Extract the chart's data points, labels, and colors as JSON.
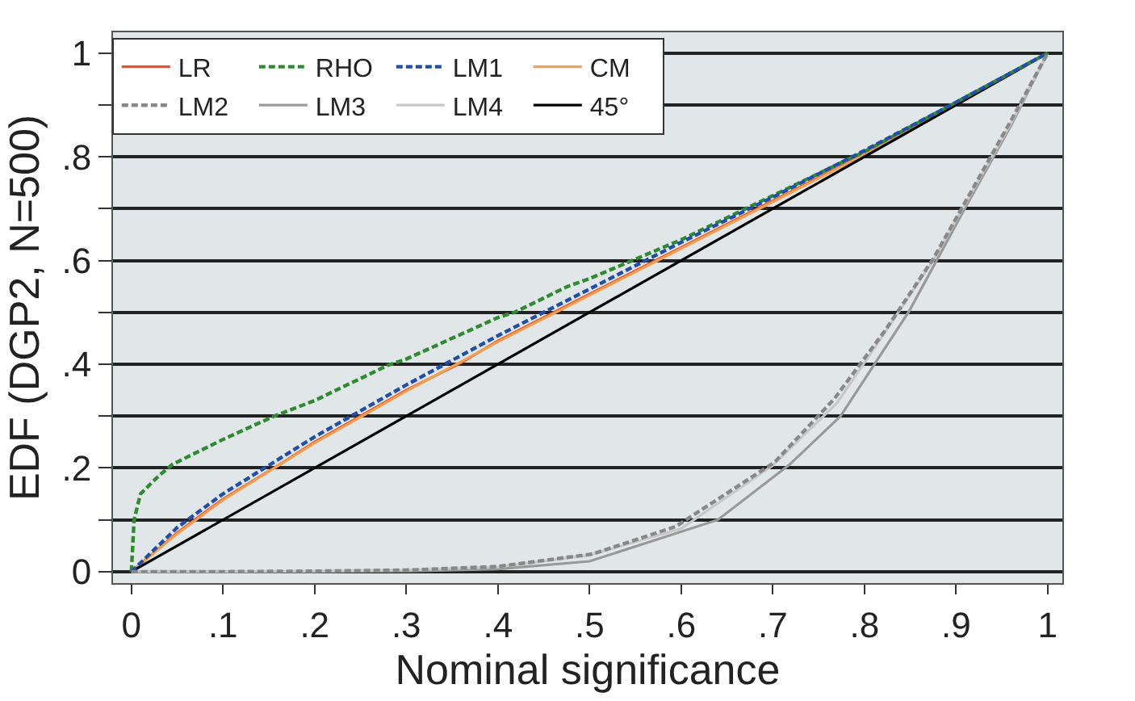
{
  "chart_data": {
    "type": "line",
    "xlabel": "Nominal significance",
    "ylabel": "EDF (DGP2, N=500)",
    "xlim": [
      -0.02,
      1.016
    ],
    "ylim": [
      -0.022,
      1.04
    ],
    "xticks": [
      0,
      {
        "value": 0.1,
        "label": ".1"
      },
      {
        "value": 0.2,
        "label": ".2"
      },
      {
        "value": 0.3,
        "label": ".3"
      },
      {
        "value": 0.4,
        "label": ".4"
      },
      {
        "value": 0.5,
        "label": ".5"
      },
      {
        "value": 0.6,
        "label": ".6"
      },
      {
        "value": 0.7,
        "label": ".7"
      },
      {
        "value": 0.8,
        "label": ".8"
      },
      {
        "value": 0.9,
        "label": ".9"
      },
      1
    ],
    "yticks": [
      0,
      {
        "value": 0.1,
        "label": null
      },
      {
        "value": 0.2,
        "label": ".2"
      },
      {
        "value": 0.3,
        "label": null
      },
      {
        "value": 0.4,
        "label": ".4"
      },
      {
        "value": 0.5,
        "label": null
      },
      {
        "value": 0.6,
        "label": ".6"
      },
      {
        "value": 0.7,
        "label": null
      },
      {
        "value": 0.8,
        "label": ".8"
      },
      {
        "value": 0.9,
        "label": null
      },
      1
    ],
    "grid": "y",
    "legend": "top left",
    "marker": "none",
    "series": [
      {
        "name": "LR",
        "color": "#e8502a",
        "line_style": "solid",
        "x": [
          0,
          0.05,
          0.1,
          0.163,
          0.2,
          0.3,
          0.359,
          0.4,
          0.5,
          0.6,
          0.7,
          0.8,
          0.9,
          1
        ],
        "values": [
          0,
          0.075,
          0.14,
          0.208,
          0.25,
          0.35,
          0.402,
          0.445,
          0.535,
          0.625,
          0.715,
          0.805,
          0.9,
          1
        ]
      },
      {
        "name": "RHO",
        "color": "#2e8b30",
        "line_style": "dashed",
        "x": [
          0,
          0.003,
          0.01,
          0.03,
          0.045,
          0.1,
          0.156,
          0.2,
          0.28,
          0.3,
          0.4,
          0.418,
          0.476,
          0.5,
          0.6,
          0.7,
          0.8,
          0.9,
          1
        ],
        "values": [
          0,
          0.1,
          0.15,
          0.185,
          0.207,
          0.255,
          0.3,
          0.33,
          0.398,
          0.41,
          0.49,
          0.5,
          0.55,
          0.565,
          0.64,
          0.725,
          0.81,
          0.905,
          1
        ]
      },
      {
        "name": "LM1",
        "color": "#1f4fa8",
        "line_style": "dashed",
        "x": [
          0,
          0.05,
          0.1,
          0.2,
          0.3,
          0.4,
          0.5,
          0.6,
          0.7,
          0.8,
          0.9,
          1
        ],
        "values": [
          0,
          0.085,
          0.15,
          0.26,
          0.36,
          0.455,
          0.545,
          0.635,
          0.722,
          0.812,
          0.905,
          1
        ]
      },
      {
        "name": "CM",
        "color": "#f0a050",
        "line_style": "solid",
        "x": [
          0,
          0.05,
          0.1,
          0.2,
          0.3,
          0.4,
          0.5,
          0.6,
          0.7,
          0.8,
          0.9,
          1
        ],
        "values": [
          0,
          0.073,
          0.138,
          0.248,
          0.348,
          0.443,
          0.533,
          0.623,
          0.713,
          0.804,
          0.9,
          1
        ]
      },
      {
        "name": "LM2",
        "color": "#888888",
        "line_style": "dashed",
        "x": [
          0,
          0.1,
          0.2,
          0.3,
          0.4,
          0.503,
          0.594,
          0.702,
          0.767,
          0.823,
          0.875,
          0.921,
          0.96,
          1
        ],
        "values": [
          0,
          0,
          0.001,
          0.003,
          0.01,
          0.034,
          0.087,
          0.211,
          0.333,
          0.466,
          0.603,
          0.747,
          0.87,
          1
        ]
      },
      {
        "name": "LM3",
        "color": "#999999",
        "line_style": "solid",
        "x": [
          0,
          0.1,
          0.2,
          0.3,
          0.4,
          0.5,
          0.64,
          0.718,
          0.774,
          0.849,
          0.911,
          0.96,
          1
        ],
        "values": [
          0,
          0,
          0,
          0.001,
          0.005,
          0.02,
          0.1,
          0.206,
          0.3,
          0.503,
          0.705,
          0.86,
          1
        ]
      },
      {
        "name": "LM4",
        "color": "#c8c8c8",
        "line_style": "solid",
        "x": [
          0,
          0.1,
          0.2,
          0.3,
          0.4,
          0.5,
          0.6,
          0.7,
          0.77,
          0.82,
          0.875,
          0.92,
          0.96,
          1
        ],
        "values": [
          0,
          0,
          0.001,
          0.003,
          0.009,
          0.032,
          0.083,
          0.205,
          0.325,
          0.455,
          0.6,
          0.74,
          0.865,
          1
        ]
      },
      {
        "name": "45°",
        "color": "#000000",
        "line_style": "solid",
        "x": [
          0,
          1
        ],
        "values": [
          0,
          1
        ]
      }
    ]
  }
}
